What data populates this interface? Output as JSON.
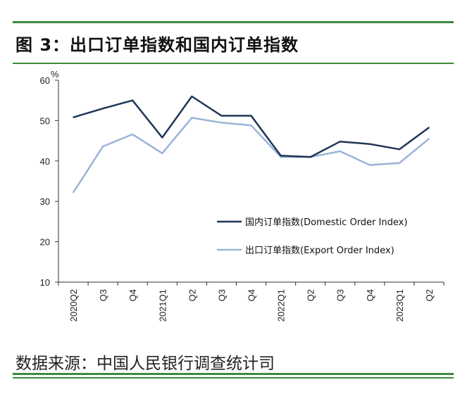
{
  "figure": {
    "title": "图 3：出口订单指数和国内订单指数",
    "source": "数据来源：中国人民银行调查统计司"
  },
  "colors": {
    "rule": "#3d8a3d",
    "domestic": "#1f3556",
    "export": "#9ab3d8",
    "axis": "#333333"
  },
  "chart_data": {
    "type": "line",
    "title": "出口订单指数和国内订单指数",
    "unit_label": "%",
    "xlabel": "",
    "ylabel": "%",
    "ylim": [
      10,
      60
    ],
    "yticks": [
      "60",
      "50",
      "40",
      "30",
      "20",
      "10"
    ],
    "categories": [
      "2020Q2",
      "Q3",
      "Q4",
      "2021Q1",
      "Q2",
      "Q3",
      "Q4",
      "2022Q1",
      "Q2",
      "Q3",
      "Q4",
      "2023Q1",
      "Q2"
    ],
    "series": [
      {
        "name": "国内订单指数(Domestic Order Index)",
        "color": "#1f3556",
        "values": [
          50.8,
          53.0,
          55.0,
          45.8,
          56.0,
          51.2,
          51.2,
          41.3,
          41.0,
          44.8,
          44.2,
          42.9,
          48.3
        ]
      },
      {
        "name": "出口订单指数(Export Order Index)",
        "color": "#9ab3d8",
        "values": [
          32.2,
          43.6,
          46.6,
          41.9,
          50.7,
          49.5,
          48.8,
          41.0,
          41.0,
          42.4,
          39.0,
          39.5,
          45.5
        ]
      }
    ],
    "legend_position": "lower-right",
    "grid": false
  }
}
